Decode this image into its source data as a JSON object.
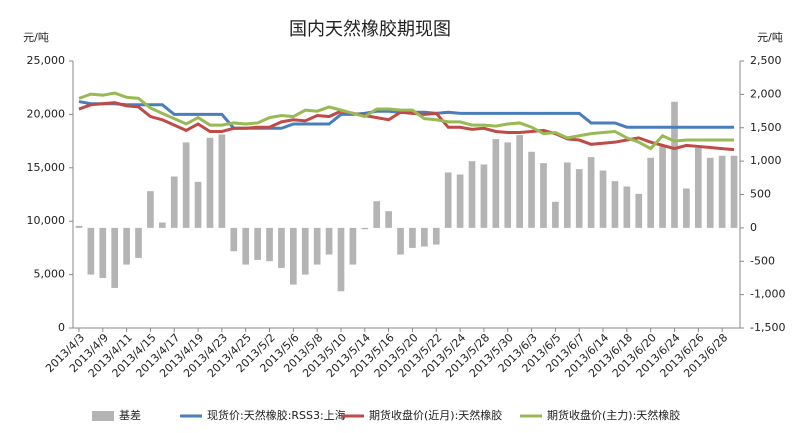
{
  "chart_data": {
    "type": "bar-line",
    "title": "国内天然橡胶期现图",
    "y_label": "元/吨",
    "y2_label": "元/吨",
    "categories": [
      "2013/4/3",
      null,
      "2013/4/9",
      null,
      "2013/4/11",
      null,
      "2013/4/15",
      null,
      "2013/4/17",
      null,
      "2013/4/19",
      null,
      "2013/4/23",
      null,
      "2013/4/25",
      null,
      "2013/5/2",
      null,
      "2013/5/6",
      null,
      "2013/5/8",
      null,
      "2013/5/10",
      null,
      "2013/5/14",
      null,
      "2013/5/16",
      null,
      "2013/5/20",
      null,
      "2013/5/22",
      null,
      "2013/5/24",
      null,
      "2013/5/28",
      null,
      "2013/5/30",
      null,
      "2013/6/3",
      null,
      "2013/6/5",
      null,
      "2013/6/7",
      null,
      "2013/6/14",
      null,
      "2013/6/18",
      null,
      "2013/6/20",
      null,
      "2013/6/24",
      null,
      "2013/6/26",
      null,
      "2013/6/28",
      null
    ],
    "series": [
      {
        "name": "基差",
        "kind": "bar",
        "axis": "y2",
        "color": "#b4b4b4",
        "values": [
          30,
          -700,
          -750,
          -900,
          -550,
          -450,
          550,
          80,
          770,
          1280,
          690,
          1350,
          1400,
          -350,
          -550,
          -480,
          -500,
          -600,
          -850,
          -700,
          -550,
          -400,
          -950,
          -550,
          -20,
          400,
          250,
          -400,
          -300,
          -280,
          -250,
          830,
          800,
          1000,
          950,
          1330,
          1280,
          1390,
          1140,
          970,
          390,
          980,
          880,
          1060,
          860,
          700,
          620,
          510,
          1050,
          1220,
          1890,
          590,
          1200,
          1050,
          1080,
          1080
        ]
      },
      {
        "name": "现货价:天然橡胶:RSS3:上海",
        "kind": "line",
        "color": "#4a7ebb",
        "values": [
          21200,
          21000,
          21000,
          21000,
          20900,
          20900,
          20900,
          20900,
          20000,
          20000,
          20000,
          20000,
          20000,
          18700,
          18700,
          18700,
          18700,
          18700,
          19100,
          19100,
          19100,
          19100,
          20000,
          20000,
          20100,
          20300,
          20300,
          20200,
          20200,
          20200,
          20100,
          20200,
          20100,
          20100,
          20100,
          20100,
          20100,
          20100,
          20100,
          20100,
          20100,
          20100,
          20100,
          19200,
          19200,
          19200,
          18800,
          18800,
          18800,
          18800,
          18800,
          18800,
          18800,
          18800,
          18800,
          18800
        ]
      },
      {
        "name": "期货收盘价(近月):天然橡胶",
        "kind": "line",
        "color": "#be4b48",
        "values": [
          20500,
          20900,
          21000,
          21100,
          20800,
          20700,
          19800,
          19500,
          19000,
          18500,
          19100,
          18400,
          18400,
          18700,
          18700,
          18800,
          18800,
          19300,
          19500,
          19400,
          19900,
          19800,
          20300,
          20100,
          19900,
          19700,
          19500,
          20200,
          20100,
          20000,
          20100,
          18800,
          18800,
          18600,
          18700,
          18400,
          18300,
          18300,
          18400,
          18500,
          18200,
          17700,
          17600,
          17200,
          17300,
          17400,
          17600,
          17800,
          17400,
          17100,
          16800,
          17100,
          17000,
          16900,
          16800,
          16700
        ]
      },
      {
        "name": "期货收盘价(主力):天然橡胶",
        "kind": "line",
        "color": "#98b954",
        "values": [
          21500,
          21900,
          21800,
          22000,
          21600,
          21500,
          20600,
          20100,
          19600,
          19100,
          19700,
          19000,
          19000,
          19200,
          19100,
          19200,
          19700,
          19900,
          19800,
          20400,
          20300,
          20700,
          20400,
          20100,
          19800,
          20500,
          20500,
          20400,
          20400,
          19600,
          19500,
          19300,
          19300,
          19000,
          19000,
          18900,
          19100,
          19200,
          18800,
          18200,
          18300,
          17800,
          18000,
          18200,
          18300,
          18400,
          17800,
          17400,
          16800,
          18000,
          17500,
          17600,
          17600,
          17600,
          17600,
          17600
        ]
      }
    ],
    "ylim": [
      0,
      25000
    ],
    "yticks": [
      0,
      {
        "value": 5000,
        "label": "5,000"
      },
      {
        "value": 10000,
        "label": "10,000"
      },
      {
        "value": 15000,
        "label": "15,000"
      },
      {
        "value": 20000,
        "label": "20,000"
      },
      {
        "value": 25000,
        "label": "25,000"
      }
    ],
    "y2lim": [
      -1500,
      2500
    ],
    "y2ticks": [
      {
        "value": -1500,
        "label": "-1,500"
      },
      {
        "value": -1000,
        "label": "-1,000"
      },
      -500,
      0,
      500,
      {
        "value": 1000,
        "label": "1,000"
      },
      {
        "value": 1500,
        "label": "1,500"
      },
      {
        "value": 2000,
        "label": "2,000"
      },
      {
        "value": 2500,
        "label": "2,500"
      }
    ],
    "legend": "bottom"
  }
}
